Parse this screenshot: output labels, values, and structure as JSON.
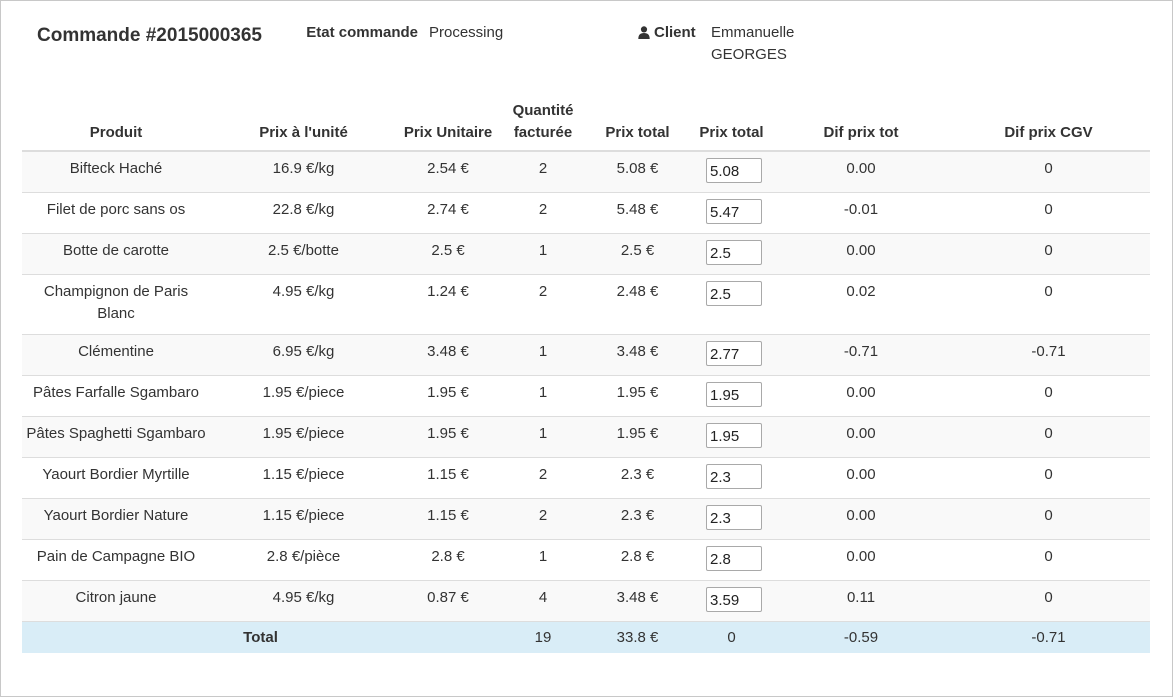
{
  "order": {
    "title": "Commande #2015000365",
    "etat_label": "Etat commande",
    "etat_value": "Processing",
    "client_label": "Client",
    "client_icon": "user-icon",
    "client_name": "Emmanuelle GEORGES"
  },
  "table": {
    "headers": {
      "produit": "Produit",
      "prix_unite": "Prix à l'unité",
      "prix_unitaire": "Prix Unitaire",
      "quantite": "Quantité facturée",
      "prix_total": "Prix total",
      "prix_total_edit": "Prix total",
      "dif_prix_tot": "Dif prix tot",
      "dif_prix_cgv": "Dif prix CGV"
    },
    "rows": [
      {
        "produit": "Bifteck Haché",
        "prix_unite": "16.9 €/kg",
        "prix_unitaire": "2.54 €",
        "quantite": "2",
        "prix_total": "5.08 €",
        "prix_total_input": "5.08",
        "dif_prix_tot": "0.00",
        "dif_prix_cgv": "0"
      },
      {
        "produit": "Filet de porc sans os",
        "prix_unite": "22.8 €/kg",
        "prix_unitaire": "2.74 €",
        "quantite": "2",
        "prix_total": "5.48 €",
        "prix_total_input": "5.47",
        "dif_prix_tot": "-0.01",
        "dif_prix_cgv": "0"
      },
      {
        "produit": "Botte de carotte",
        "prix_unite": "2.5 €/botte",
        "prix_unitaire": "2.5 €",
        "quantite": "1",
        "prix_total": "2.5 €",
        "prix_total_input": "2.5",
        "dif_prix_tot": "0.00",
        "dif_prix_cgv": "0"
      },
      {
        "produit": "Champignon de Paris Blanc",
        "prix_unite": "4.95 €/kg",
        "prix_unitaire": "1.24 €",
        "quantite": "2",
        "prix_total": "2.48 €",
        "prix_total_input": "2.5",
        "dif_prix_tot": "0.02",
        "dif_prix_cgv": "0"
      },
      {
        "produit": "Clémentine",
        "prix_unite": "6.95 €/kg",
        "prix_unitaire": "3.48 €",
        "quantite": "1",
        "prix_total": "3.48 €",
        "prix_total_input": "2.77",
        "dif_prix_tot": "-0.71",
        "dif_prix_cgv": "-0.71"
      },
      {
        "produit": "Pâtes Farfalle Sgambaro",
        "prix_unite": "1.95 €/piece",
        "prix_unitaire": "1.95 €",
        "quantite": "1",
        "prix_total": "1.95 €",
        "prix_total_input": "1.95",
        "dif_prix_tot": "0.00",
        "dif_prix_cgv": "0"
      },
      {
        "produit": "Pâtes Spaghetti Sgambaro",
        "prix_unite": "1.95 €/piece",
        "prix_unitaire": "1.95 €",
        "quantite": "1",
        "prix_total": "1.95 €",
        "prix_total_input": "1.95",
        "dif_prix_tot": "0.00",
        "dif_prix_cgv": "0"
      },
      {
        "produit": "Yaourt Bordier Myrtille",
        "prix_unite": "1.15 €/piece",
        "prix_unitaire": "1.15 €",
        "quantite": "2",
        "prix_total": "2.3 €",
        "prix_total_input": "2.3",
        "dif_prix_tot": "0.00",
        "dif_prix_cgv": "0"
      },
      {
        "produit": "Yaourt Bordier Nature",
        "prix_unite": "1.15 €/piece",
        "prix_unitaire": "1.15 €",
        "quantite": "2",
        "prix_total": "2.3 €",
        "prix_total_input": "2.3",
        "dif_prix_tot": "0.00",
        "dif_prix_cgv": "0"
      },
      {
        "produit": "Pain de Campagne BIO",
        "prix_unite": "2.8 €/pièce",
        "prix_unitaire": "2.8 €",
        "quantite": "1",
        "prix_total": "2.8 €",
        "prix_total_input": "2.8",
        "dif_prix_tot": "0.00",
        "dif_prix_cgv": "0"
      },
      {
        "produit": "Citron jaune",
        "prix_unite": "4.95 €/kg",
        "prix_unitaire": "0.87 €",
        "quantite": "4",
        "prix_total": "3.48 €",
        "prix_total_input": "3.59",
        "dif_prix_tot": "0.11",
        "dif_prix_cgv": "0"
      }
    ],
    "total": {
      "label": "Total",
      "quantite": "19",
      "prix_total": "33.8 €",
      "prix_total_edit": "0",
      "dif_prix_tot": "-0.59",
      "dif_prix_cgv": "-0.71"
    }
  },
  "colors": {
    "product_link": "#2e6b3a",
    "total_row_bg": "#d9edf7",
    "stripe_bg": "#f9f9f9"
  }
}
